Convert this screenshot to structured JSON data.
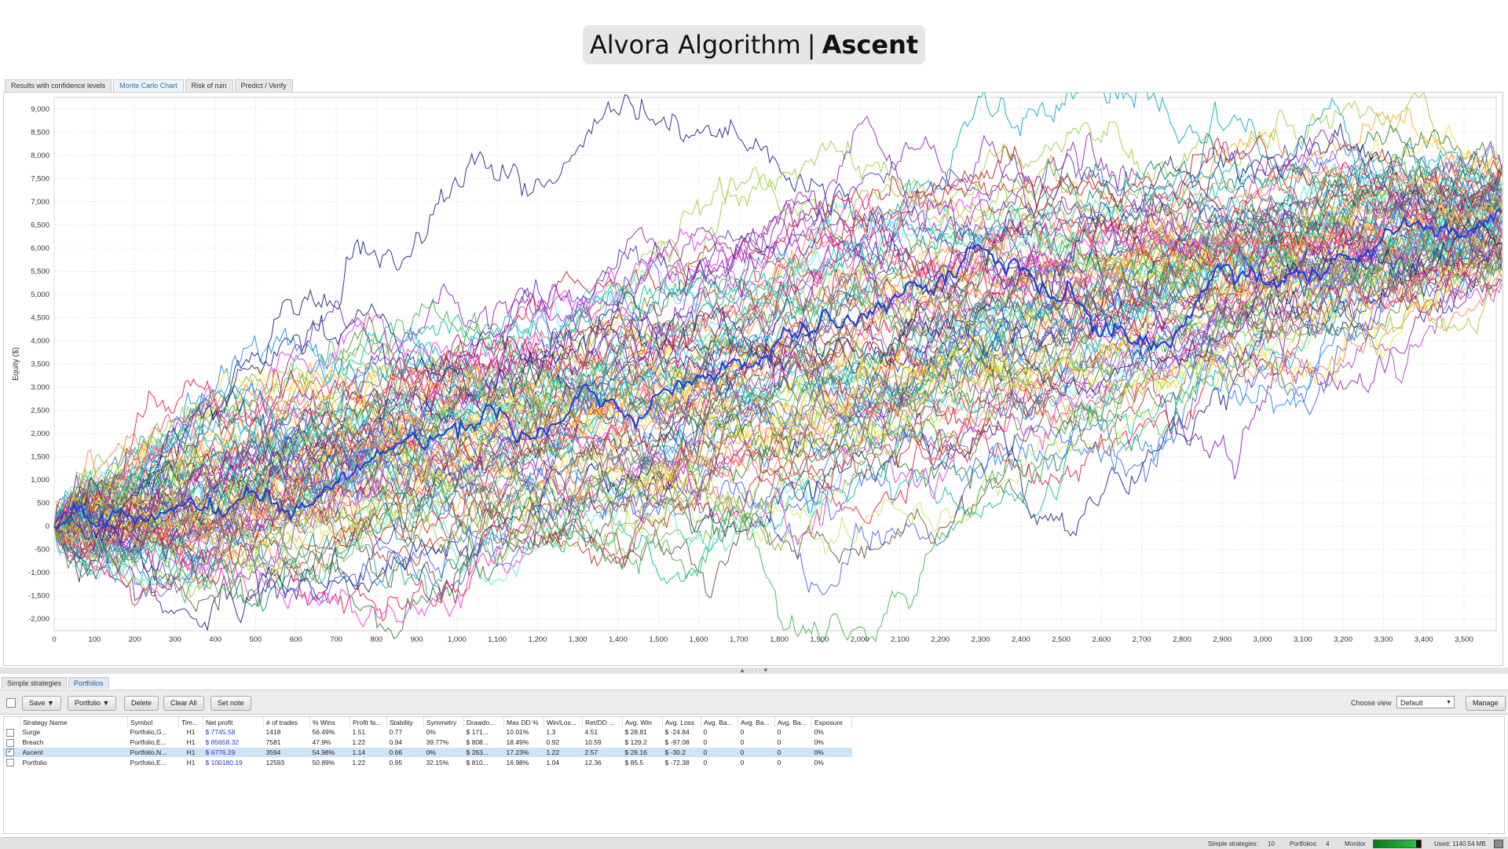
{
  "title": {
    "prefix": "Alvora Algorithm",
    "separator": "|",
    "name": "Ascent"
  },
  "tabs": [
    {
      "label": "Results with confidence levels"
    },
    {
      "label": "Monte Carlo Chart"
    },
    {
      "label": "Risk of ruin"
    },
    {
      "label": "Predict / Verify"
    }
  ],
  "chart_data": {
    "type": "line",
    "ylabel": "Equity ($)",
    "xlabel": "",
    "xlim": [
      0,
      3580
    ],
    "ylim": [
      -2250,
      9250
    ],
    "x_ticks": [
      "0",
      "100",
      "200",
      "300",
      "400",
      "500",
      "600",
      "700",
      "800",
      "900",
      "1,000",
      "1,100",
      "1,200",
      "1,300",
      "1,400",
      "1,500",
      "1,600",
      "1,700",
      "1,800",
      "1,900",
      "2,000",
      "2,100",
      "2,200",
      "2,300",
      "2,400",
      "2,500",
      "2,600",
      "2,700",
      "2,800",
      "2,900",
      "3,000",
      "3,100",
      "3,200",
      "3,300",
      "3,400",
      "3,500"
    ],
    "y_ticks": [
      "-2,000",
      "-1,500",
      "-1,000",
      "-500",
      "0",
      "500",
      "1,000",
      "1,500",
      "2,000",
      "2,500",
      "3,000",
      "3,500",
      "4,000",
      "4,500",
      "5,000",
      "5,500",
      "6,000",
      "6,500",
      "7,000",
      "7,500",
      "8,000",
      "8,500",
      "9,000"
    ],
    "grid": true,
    "series_count": 100,
    "trades_per_series": 3594,
    "start_equity": 0,
    "median_end_equity": 6776,
    "envelope": {
      "upper_peak": 8700,
      "lower_trough": -1750
    }
  },
  "bottom_tabs": [
    {
      "label": "Simple strategies"
    },
    {
      "label": "Portfolios"
    }
  ],
  "toolbar": {
    "save": "Save ▼",
    "portfolio": "Portfolio ▼",
    "delete": "Delete",
    "clear_all": "Clear All",
    "set_note": "Set note",
    "choose_view_label": "Choose view",
    "view_value": "Default",
    "manage": "Manage"
  },
  "table": {
    "columns": [
      "Strategy Name",
      "Symbol",
      "Tim...",
      "Net profit",
      "# of trades",
      "% Wins",
      "Profit fa...",
      "Stability",
      "Symmetry",
      "Drawdo...",
      "Max DD %",
      "Win/Los...",
      "Ret/DD ...",
      "Avg. Win",
      "Avg. Loss",
      "Avg. Ba...",
      "Avg. Ba...",
      "Avg. Ba...",
      "Exposure"
    ],
    "rows": [
      {
        "checked": false,
        "selected": false,
        "cells": [
          "Surge",
          "Portfolio,G...",
          "H1",
          "$ 7745.58",
          "1418",
          "56.49%",
          "1.51",
          "0.77",
          "0%",
          "$ 171...",
          "10.01%",
          "1.3",
          "4.51",
          "$ 28.81",
          "$ -24.84",
          "0",
          "0",
          "0",
          "0%"
        ]
      },
      {
        "checked": false,
        "selected": false,
        "cells": [
          "Breach",
          "Portfolio,E...",
          "H1",
          "$ 85658.32",
          "7581",
          "47.9%",
          "1.22",
          "0.94",
          "39.77%",
          "$ 808...",
          "18.49%",
          "0.92",
          "10.59",
          "$ 129.2",
          "$ -97.08",
          "0",
          "0",
          "0",
          "0%"
        ]
      },
      {
        "checked": true,
        "selected": true,
        "cells": [
          "Ascent",
          "Portfolio,N...",
          "H1",
          "$ 6776.29",
          "3594",
          "54.98%",
          "1.14",
          "0.66",
          "0%",
          "$ 263...",
          "17.23%",
          "1.22",
          "2.57",
          "$ 26.16",
          "$ -30.2",
          "0",
          "0",
          "0",
          "0%"
        ]
      },
      {
        "checked": false,
        "selected": false,
        "cells": [
          "Portfolio",
          "Portfolio,E...",
          "H1",
          "$ 100180.19",
          "12593",
          "50.89%",
          "1.22",
          "0.95",
          "32.15%",
          "$ 810...",
          "16.98%",
          "1.04",
          "12.36",
          "$ 85.5",
          "$ -72.38",
          "0",
          "0",
          "0",
          "0%"
        ]
      }
    ]
  },
  "status": {
    "simple_label": "Simple strategies:",
    "simple_value": "10",
    "portfolios_label": "Portfolios:",
    "portfolios_value": "4",
    "monitor_label": "Monitor",
    "monitor_level": 0.9,
    "used_label": "Used: 1140.54 MB"
  },
  "colors": {
    "palette": [
      "#e6194b",
      "#3cb44b",
      "#ffe119",
      "#4363d8",
      "#f58231",
      "#911eb4",
      "#46f0f0",
      "#f032e6",
      "#9acd32",
      "#1a237e",
      "#00897b",
      "#c62828",
      "#2e7d32",
      "#ff7f50",
      "#8e24aa",
      "#26c6da",
      "#d4e157",
      "#6d4c41",
      "#ec407a",
      "#1e88e5",
      "#7cb342",
      "#5e35b1",
      "#ffa726",
      "#00acc1",
      "#b71c1c",
      "#558b2f",
      "#ab47bc",
      "#fdd835",
      "#283593",
      "#00bfa5"
    ],
    "highlight": "#2340d8",
    "selected_row": "#cde3f7",
    "link_blue": "#2b35c9"
  }
}
